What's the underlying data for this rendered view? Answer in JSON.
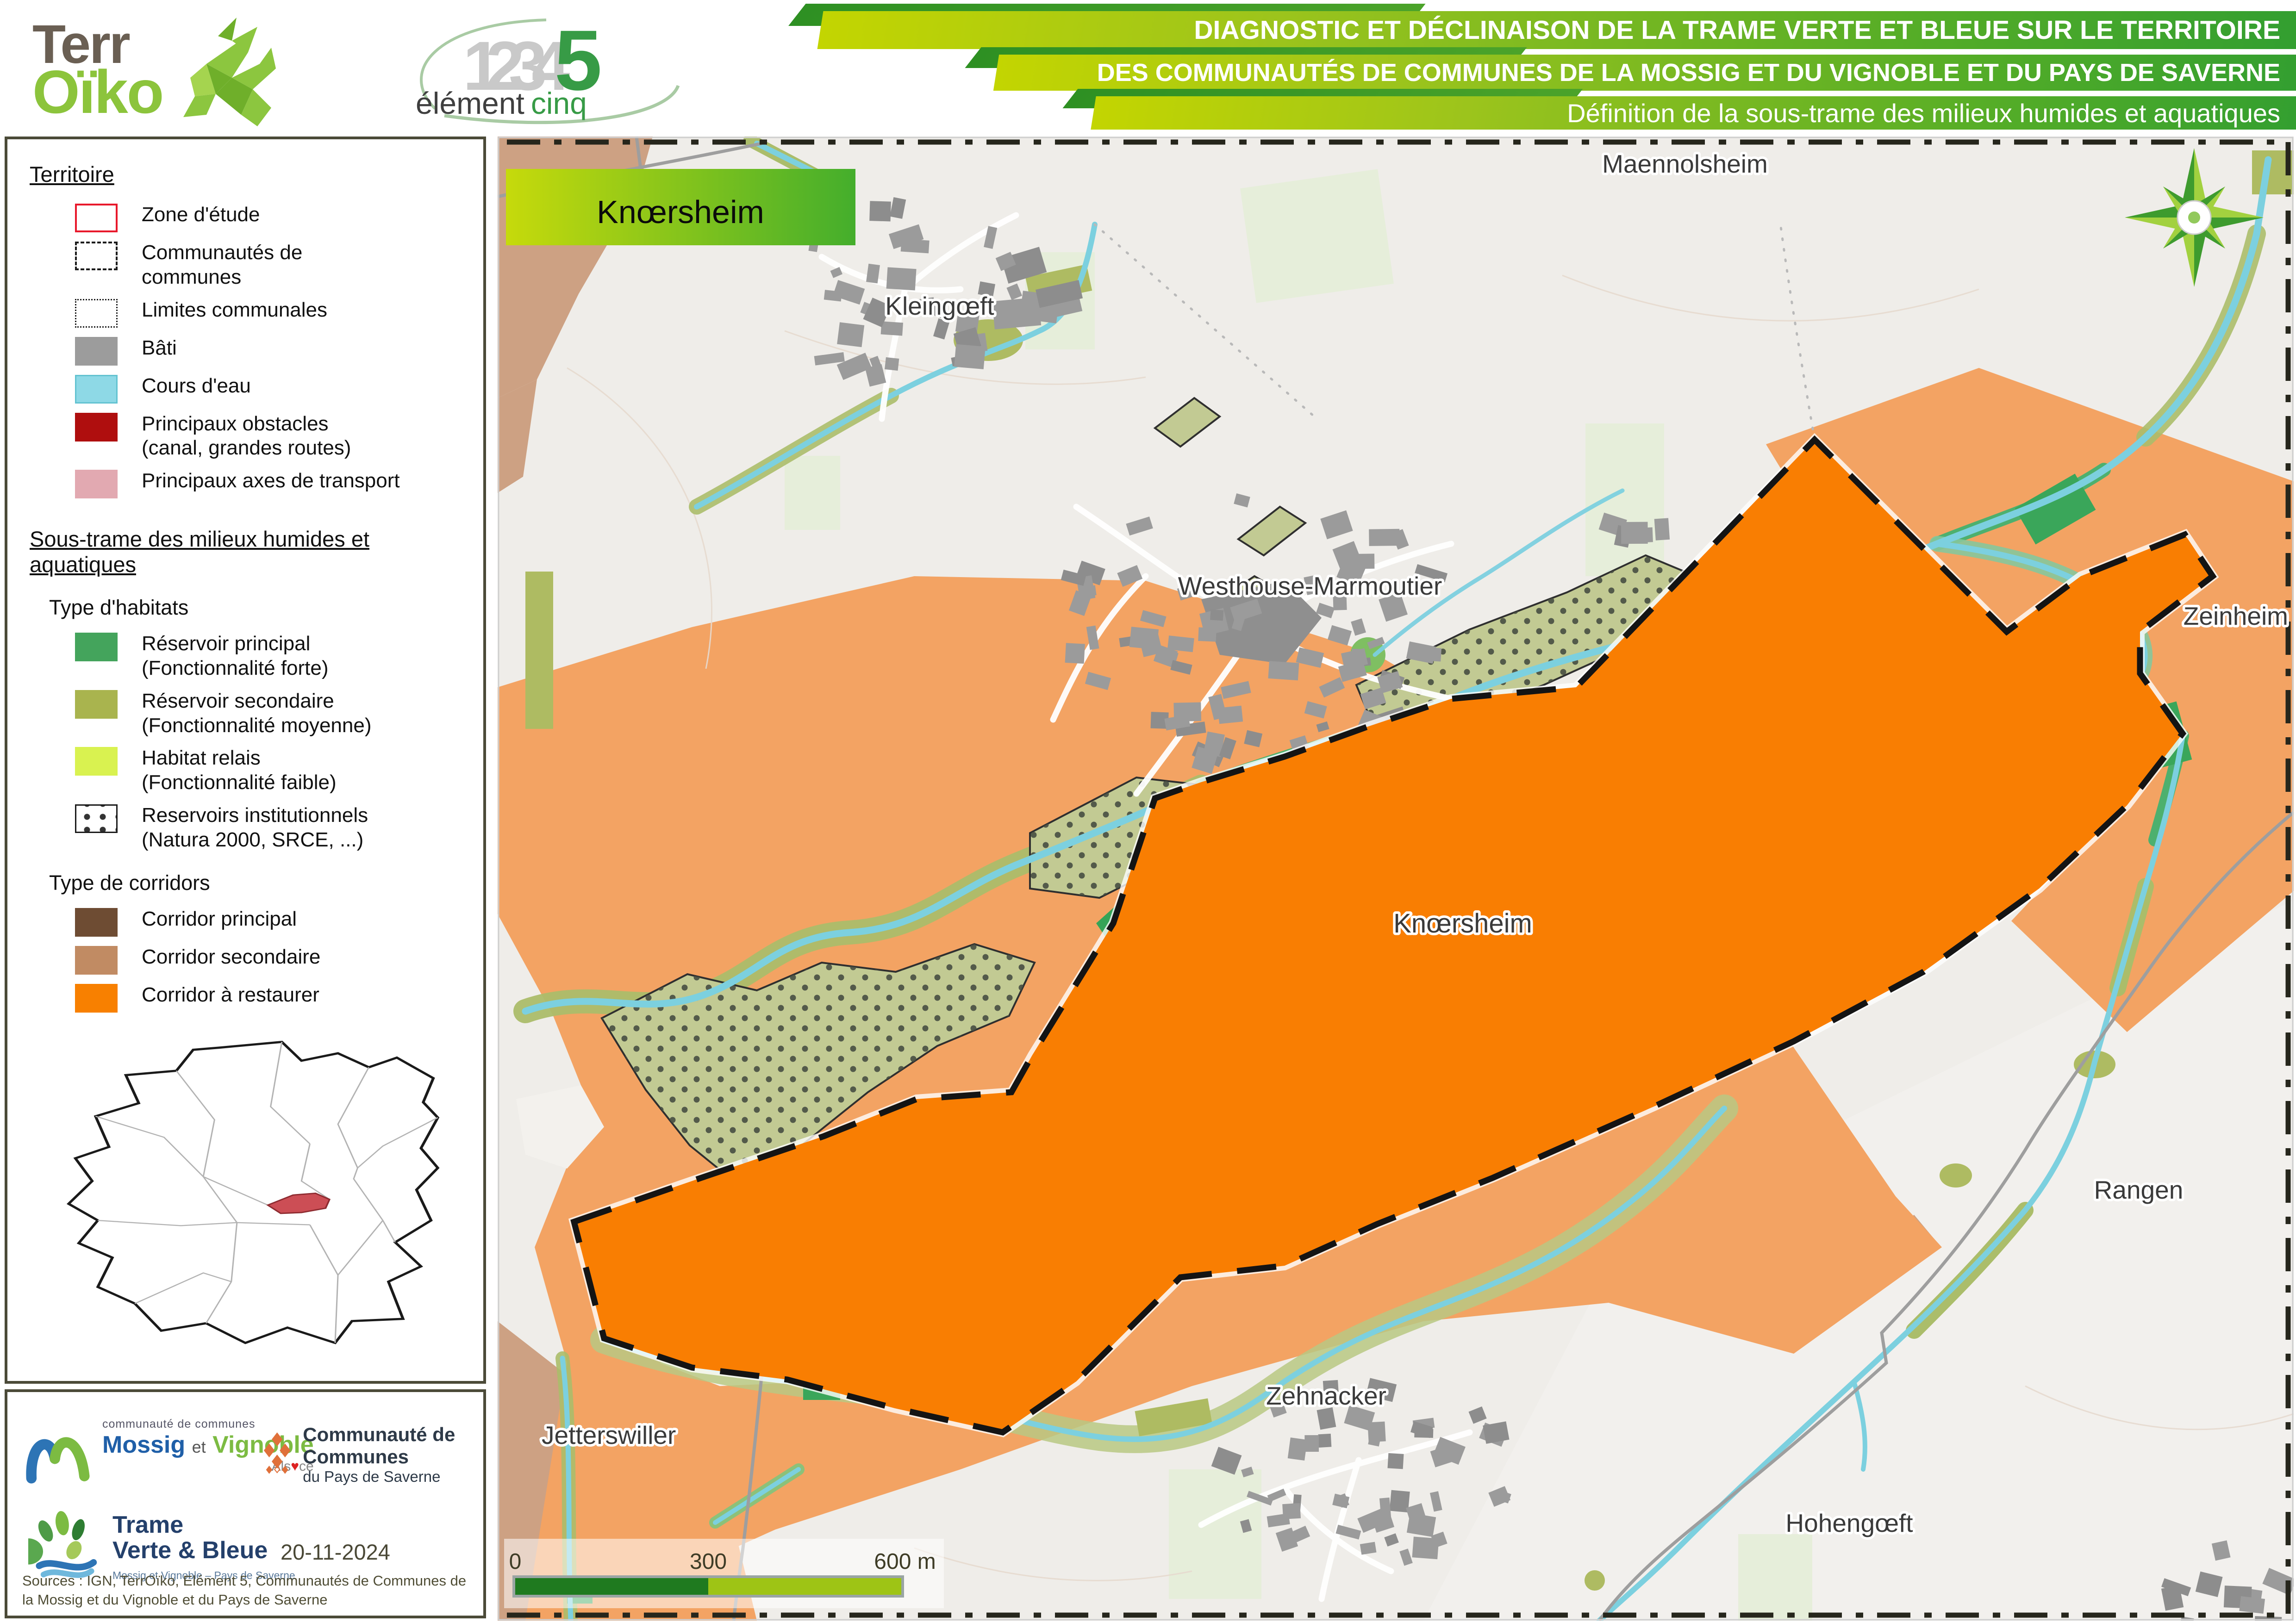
{
  "header": {
    "terroiko": {
      "line1": "Terr",
      "line2": "Oïko"
    },
    "element5": {
      "digits": "1234",
      "five": "5",
      "word1": "élément",
      "word2": "cinq"
    },
    "banners": [
      {
        "text": "DIAGNOSTIC ET DÉCLINAISON DE LA TRAME VERTE ET BLEUE SUR LE TERRITOIRE"
      },
      {
        "text": "DES COMMUNAUTÉS DE COMMUNES DE LA MOSSIG ET DU VIGNOBLE ET DU PAYS DE SAVERNE"
      },
      {
        "text": "Définition de la sous-trame des milieux humides et aquatiques"
      }
    ]
  },
  "legend": {
    "territoire": {
      "title": "Territoire",
      "items": [
        {
          "label": "Zone d'étude",
          "sub": ""
        },
        {
          "label": "Communautés de communes",
          "sub": ""
        },
        {
          "label": "Limites communales",
          "sub": ""
        },
        {
          "label": "Bâti",
          "sub": ""
        },
        {
          "label": "Cours d'eau",
          "sub": ""
        },
        {
          "label": "Principaux obstacles",
          "sub": "(canal, grandes routes)"
        },
        {
          "label": "Principaux axes de transport",
          "sub": ""
        }
      ]
    },
    "sous_trame": {
      "title": "Sous-trame des milieux humides et aquatiques",
      "habitats": {
        "title": "Type d'habitats",
        "items": [
          {
            "label": "Réservoir principal",
            "sub": "(Fonctionnalité forte)"
          },
          {
            "label": "Réservoir secondaire",
            "sub": "(Fonctionnalité moyenne)"
          },
          {
            "label": "Habitat relais",
            "sub": "(Fonctionnalité faible)"
          },
          {
            "label": "Reservoirs institutionnels",
            "sub": "(Natura 2000, SRCE, ...)"
          }
        ]
      },
      "corridors": {
        "title": "Type de corridors",
        "items": [
          {
            "label": "Corridor principal"
          },
          {
            "label": "Corridor secondaire"
          },
          {
            "label": "Corridor à restaurer"
          }
        ]
      }
    }
  },
  "credits": {
    "mossig_logo": {
      "small": "communauté de communes",
      "name1": "Mossig",
      "et": "et",
      "name2": "Vignoble",
      "region_pre": "Als",
      "region_post": "ce"
    },
    "saverne_logo": {
      "line1": "Communauté de Communes",
      "line2": "du Pays de Saverne"
    },
    "tvb_logo": {
      "line1": "Trame",
      "line2": "Verte & Bleue",
      "subtitle": "Mossig et Vignoble – Pays de Saverne"
    },
    "date": "20-11-2024",
    "sources": "Sources : IGN, TerrOïko, Elément 5, Communautés de Communes de la Mossig et du Vignoble et du Pays de Saverne"
  },
  "map": {
    "title_box": "Knœrsheim",
    "labels": [
      {
        "text": "Maennolsheim"
      },
      {
        "text": "Kleingœft"
      },
      {
        "text": "Westhouse-Marmoutier"
      },
      {
        "text": "Zeinheim"
      },
      {
        "text": "Knœrsheim"
      },
      {
        "text": "Rangen"
      },
      {
        "text": "Jetterswiller"
      },
      {
        "text": "Zehnacker"
      },
      {
        "text": "Hohengœft"
      }
    ],
    "scalebar": {
      "t0": "0",
      "t300": "300",
      "t600": "600 m"
    }
  },
  "colors": {
    "zone_border": "#e8192c",
    "bati": "#9c9c9c",
    "cours_eau": "#8ed9e6",
    "obstacles": "#af0e0e",
    "axes_transport": "#e2a9b1",
    "reservoir_principal": "#44a45c",
    "reservoir_secondaire": "#a9b44e",
    "habitat_relais": "#d9f250",
    "corridor_principal": "#6e4c33",
    "corridor_secondaire": "#c18b63",
    "corridor_restaurer": "#f88000",
    "banner_light": "#c3d501",
    "banner_dark": "#2f9d31",
    "map_orange": "#f97e02",
    "map_orange_light": "#f3a363",
    "map_tan": "#cda183"
  }
}
